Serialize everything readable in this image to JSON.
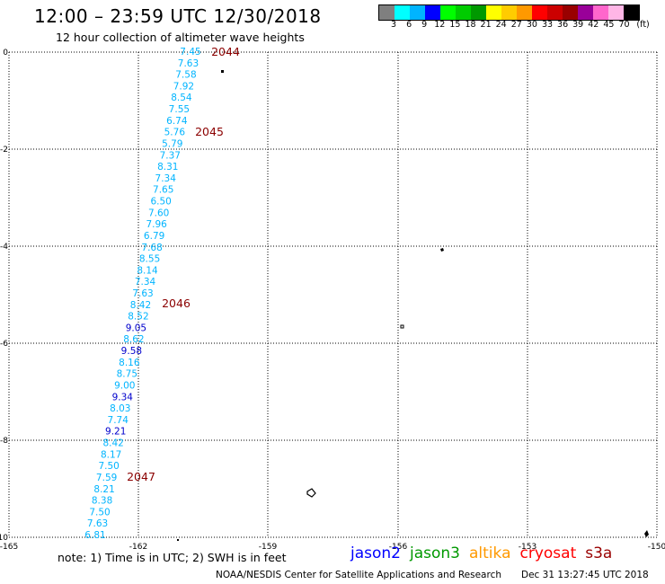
{
  "header": {
    "title": "12:00 – 23:59 UTC 12/30/2018",
    "subtitle": "12 hour collection of altimeter wave heights"
  },
  "legend": {
    "colors": [
      "#7f7f7f",
      "#00ffff",
      "#00b4ff",
      "#0000ff",
      "#00ff00",
      "#00cc00",
      "#009900",
      "#ffff00",
      "#ffcc00",
      "#ff9900",
      "#ff0000",
      "#cc0000",
      "#990000",
      "#990099",
      "#ff66cc",
      "#ffb6e6",
      "#000000"
    ],
    "labels": [
      "3",
      "6",
      "9",
      "12",
      "15",
      "18",
      "21",
      "24",
      "27",
      "30",
      "33",
      "36",
      "39",
      "42",
      "45",
      "70",
      "(ft)"
    ]
  },
  "map": {
    "x_ticks": [
      "-165",
      "-162",
      "-159",
      "-156",
      "-153",
      "-150"
    ],
    "y_ticks": [
      "0",
      "-2",
      "-4",
      "-6",
      "-8",
      "-10"
    ],
    "time_labels": [
      "2044",
      "2045",
      "2046",
      "2047"
    ],
    "readings": [
      {
        "v": "7.45",
        "c": "cyan"
      },
      {
        "v": "7.63",
        "c": "cyan"
      },
      {
        "v": "7.58",
        "c": "cyan"
      },
      {
        "v": "7.92",
        "c": "cyan"
      },
      {
        "v": "8.54",
        "c": "cyan"
      },
      {
        "v": "7.55",
        "c": "cyan"
      },
      {
        "v": "6.74",
        "c": "cyan"
      },
      {
        "v": "5.76",
        "c": "cyan"
      },
      {
        "v": "5.79",
        "c": "cyan"
      },
      {
        "v": "7.37",
        "c": "cyan"
      },
      {
        "v": "8.31",
        "c": "cyan"
      },
      {
        "v": "7.34",
        "c": "cyan"
      },
      {
        "v": "7.65",
        "c": "cyan"
      },
      {
        "v": "6.50",
        "c": "cyan"
      },
      {
        "v": "7.60",
        "c": "cyan"
      },
      {
        "v": "7.96",
        "c": "cyan"
      },
      {
        "v": "6.79",
        "c": "cyan"
      },
      {
        "v": "7.68",
        "c": "cyan"
      },
      {
        "v": "8.55",
        "c": "cyan"
      },
      {
        "v": "8.14",
        "c": "cyan"
      },
      {
        "v": "7.34",
        "c": "cyan"
      },
      {
        "v": "7.63",
        "c": "cyan"
      },
      {
        "v": "8.42",
        "c": "cyan"
      },
      {
        "v": "8.52",
        "c": "cyan"
      },
      {
        "v": "9.05",
        "c": "blue"
      },
      {
        "v": "8.62",
        "c": "cyan"
      },
      {
        "v": "9.58",
        "c": "blue"
      },
      {
        "v": "8.16",
        "c": "cyan"
      },
      {
        "v": "8.75",
        "c": "cyan"
      },
      {
        "v": "9.00",
        "c": "cyan"
      },
      {
        "v": "9.34",
        "c": "blue"
      },
      {
        "v": "8.03",
        "c": "cyan"
      },
      {
        "v": "7.74",
        "c": "cyan"
      },
      {
        "v": "9.21",
        "c": "blue"
      },
      {
        "v": "8.42",
        "c": "cyan"
      },
      {
        "v": "8.17",
        "c": "cyan"
      },
      {
        "v": "7.50",
        "c": "cyan"
      },
      {
        "v": "7.59",
        "c": "cyan"
      },
      {
        "v": "8.21",
        "c": "cyan"
      },
      {
        "v": "8.38",
        "c": "cyan"
      },
      {
        "v": "7.50",
        "c": "cyan"
      },
      {
        "v": "7.63",
        "c": "cyan"
      },
      {
        "v": "6.81",
        "c": "cyan"
      }
    ],
    "colors": {
      "cyan": "#00b4ff",
      "blue": "#0000cc",
      "time": "#8b0000",
      "grid": "#000000"
    }
  },
  "footer": {
    "note": "note:  1) Time is in UTC; 2) SWH is in feet",
    "satellites": [
      {
        "name": "jason2",
        "color": "#0000ff"
      },
      {
        "name": "jason3",
        "color": "#009900"
      },
      {
        "name": "altika",
        "color": "#ff9900"
      },
      {
        "name": "cryosat",
        "color": "#ff0000"
      },
      {
        "name": "s3a",
        "color": "#990000"
      }
    ],
    "credit": "NOAA/NESDIS Center for Satellite Applications and Research",
    "timestamp": "Dec 31 13:27:45 UTC 2018"
  }
}
